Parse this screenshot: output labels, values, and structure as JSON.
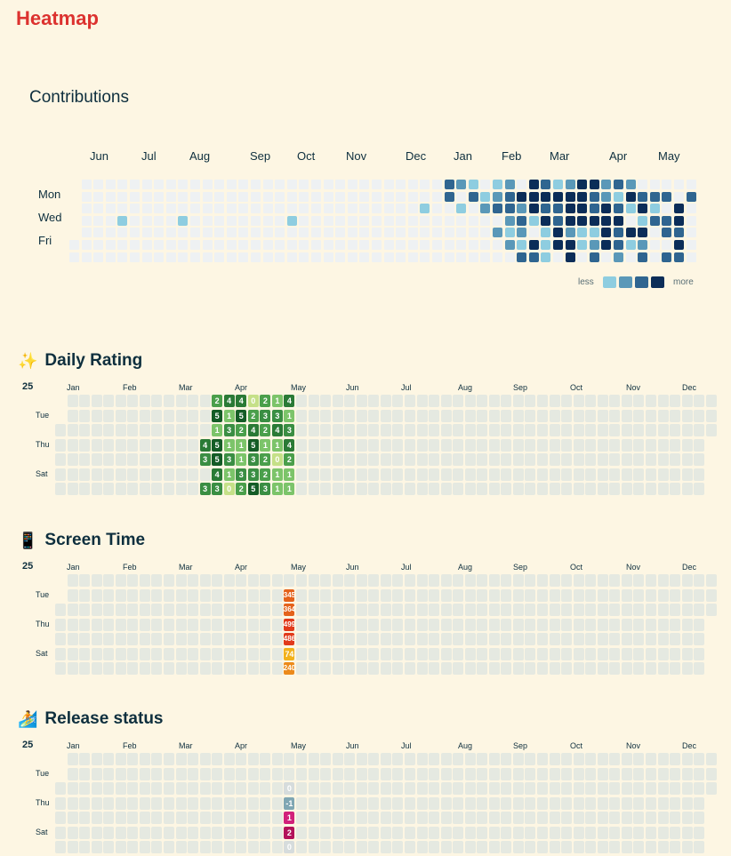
{
  "app_title": "Heatmap",
  "contributions": {
    "title": "Contributions",
    "months": [
      "Jun",
      "Jul",
      "Aug",
      "Sep",
      "Oct",
      "Nov",
      "Dec",
      "Jan",
      "Feb",
      "Mar",
      "Apr",
      "May"
    ],
    "day_labels": [
      "Mon",
      "Wed",
      "Fri"
    ],
    "legend_less": "less",
    "legend_more": "more",
    "colors": {
      "empty": "#eef1f3",
      "level1": "#8ecde0",
      "level2": "#5a98b8",
      "level3": "#2f6590",
      "level4": "#0b2d58"
    },
    "active_cells": [
      [
        42,
        1,
        3
      ],
      [
        43,
        1,
        2
      ],
      [
        44,
        1,
        1
      ],
      [
        46,
        1,
        1
      ],
      [
        47,
        1,
        2
      ],
      [
        49,
        1,
        4
      ],
      [
        50,
        1,
        3
      ],
      [
        51,
        1,
        1
      ],
      [
        52,
        1,
        2
      ],
      [
        53,
        1,
        4
      ],
      [
        54,
        1,
        4
      ],
      [
        55,
        1,
        2
      ],
      [
        56,
        1,
        3
      ],
      [
        57,
        1,
        2
      ],
      [
        44,
        2,
        3
      ],
      [
        45,
        2,
        1
      ],
      [
        46,
        2,
        2
      ],
      [
        47,
        2,
        3
      ],
      [
        48,
        2,
        4
      ],
      [
        49,
        2,
        4
      ],
      [
        50,
        2,
        4
      ],
      [
        51,
        2,
        4
      ],
      [
        52,
        2,
        4
      ],
      [
        53,
        2,
        4
      ],
      [
        54,
        2,
        3
      ],
      [
        55,
        2,
        2
      ],
      [
        56,
        2,
        1
      ],
      [
        57,
        2,
        4
      ],
      [
        58,
        2,
        3
      ],
      [
        59,
        2,
        3
      ],
      [
        60,
        2,
        3
      ],
      [
        62,
        2,
        3
      ],
      [
        43,
        3,
        1
      ],
      [
        45,
        3,
        2
      ],
      [
        46,
        3,
        3
      ],
      [
        47,
        3,
        3
      ],
      [
        48,
        3,
        2
      ],
      [
        49,
        3,
        4
      ],
      [
        50,
        3,
        3
      ],
      [
        51,
        3,
        3
      ],
      [
        52,
        3,
        4
      ],
      [
        53,
        3,
        4
      ],
      [
        54,
        3,
        3
      ],
      [
        55,
        3,
        4
      ],
      [
        56,
        3,
        3
      ],
      [
        57,
        3,
        1
      ],
      [
        58,
        3,
        4
      ],
      [
        59,
        3,
        1
      ],
      [
        61,
        3,
        4
      ],
      [
        47,
        4,
        2
      ],
      [
        48,
        4,
        3
      ],
      [
        49,
        4,
        1
      ],
      [
        50,
        4,
        4
      ],
      [
        51,
        4,
        3
      ],
      [
        52,
        4,
        4
      ],
      [
        53,
        4,
        4
      ],
      [
        54,
        4,
        4
      ],
      [
        55,
        4,
        4
      ],
      [
        56,
        4,
        4
      ],
      [
        58,
        4,
        1
      ],
      [
        59,
        4,
        3
      ],
      [
        60,
        4,
        3
      ],
      [
        61,
        4,
        4
      ],
      [
        46,
        5,
        2
      ],
      [
        47,
        5,
        1
      ],
      [
        48,
        5,
        2
      ],
      [
        50,
        5,
        1
      ],
      [
        51,
        5,
        4
      ],
      [
        52,
        5,
        2
      ],
      [
        53,
        5,
        1
      ],
      [
        54,
        5,
        1
      ],
      [
        55,
        5,
        4
      ],
      [
        56,
        5,
        3
      ],
      [
        57,
        5,
        4
      ],
      [
        58,
        5,
        4
      ],
      [
        60,
        5,
        3
      ],
      [
        61,
        5,
        3
      ],
      [
        47,
        6,
        2
      ],
      [
        48,
        6,
        1
      ],
      [
        49,
        6,
        4
      ],
      [
        50,
        6,
        1
      ],
      [
        51,
        6,
        4
      ],
      [
        52,
        6,
        4
      ],
      [
        53,
        6,
        1
      ],
      [
        54,
        6,
        2
      ],
      [
        55,
        6,
        4
      ],
      [
        56,
        6,
        3
      ],
      [
        57,
        6,
        1
      ],
      [
        58,
        6,
        2
      ],
      [
        61,
        6,
        4
      ],
      [
        48,
        7,
        3
      ],
      [
        49,
        7,
        3
      ],
      [
        50,
        7,
        1
      ],
      [
        52,
        7,
        4
      ],
      [
        54,
        7,
        3
      ],
      [
        56,
        7,
        2
      ],
      [
        58,
        7,
        3
      ],
      [
        60,
        7,
        3
      ],
      [
        61,
        7,
        3
      ],
      [
        46,
        8,
        4
      ],
      [
        47,
        8,
        1
      ],
      [
        54,
        8,
        3
      ],
      [
        56,
        8,
        3
      ],
      [
        15,
        4,
        1
      ],
      [
        20,
        4,
        1
      ],
      [
        29,
        4,
        1
      ],
      [
        40,
        3,
        1
      ],
      [
        42,
        2,
        3
      ]
    ]
  },
  "daily_rating": {
    "title": "Daily Rating",
    "emoji": "✨",
    "year": "25",
    "months": [
      "Jan",
      "Feb",
      "Mar",
      "Apr",
      "May",
      "Jun",
      "Jul",
      "Aug",
      "Sep",
      "Oct",
      "Nov",
      "Dec"
    ],
    "day_labels": [
      "Tue",
      "Thu",
      "Sat"
    ],
    "colors": {
      "0": "#c5e088",
      "1": "#7cc46a",
      "2": "#4a9f4b",
      "3": "#3a8e43",
      "4": "#2a7a36",
      "5": "#145c26"
    },
    "entries": [
      [
        13,
        0,
        "2"
      ],
      [
        14,
        0,
        "4"
      ],
      [
        15,
        0,
        "4"
      ],
      [
        16,
        0,
        "0"
      ],
      [
        17,
        0,
        "2"
      ],
      [
        18,
        0,
        "1"
      ],
      [
        19,
        0,
        "4"
      ],
      [
        13,
        1,
        "5"
      ],
      [
        14,
        1,
        "1"
      ],
      [
        15,
        1,
        "5"
      ],
      [
        16,
        1,
        "2"
      ],
      [
        17,
        1,
        "3"
      ],
      [
        18,
        1,
        "3"
      ],
      [
        19,
        1,
        "1"
      ],
      [
        13,
        2,
        "1"
      ],
      [
        14,
        2,
        "3"
      ],
      [
        15,
        2,
        "2"
      ],
      [
        16,
        2,
        "4"
      ],
      [
        17,
        2,
        "2"
      ],
      [
        18,
        2,
        "4"
      ],
      [
        19,
        2,
        "3"
      ],
      [
        12,
        3,
        "4"
      ],
      [
        13,
        3,
        "5"
      ],
      [
        14,
        3,
        "1"
      ],
      [
        15,
        3,
        "1"
      ],
      [
        16,
        3,
        "5"
      ],
      [
        17,
        3,
        "1"
      ],
      [
        18,
        3,
        "1"
      ],
      [
        19,
        3,
        "4"
      ],
      [
        12,
        4,
        "3"
      ],
      [
        13,
        4,
        "5"
      ],
      [
        14,
        4,
        "3"
      ],
      [
        15,
        4,
        "1"
      ],
      [
        16,
        4,
        "3"
      ],
      [
        17,
        4,
        "2"
      ],
      [
        18,
        4,
        "0"
      ],
      [
        19,
        4,
        "2"
      ],
      [
        13,
        5,
        "4"
      ],
      [
        14,
        5,
        "1"
      ],
      [
        15,
        5,
        "3"
      ],
      [
        16,
        5,
        "3"
      ],
      [
        17,
        5,
        "2"
      ],
      [
        18,
        5,
        "1"
      ],
      [
        19,
        5,
        "1"
      ],
      [
        12,
        6,
        "3"
      ],
      [
        13,
        6,
        "3"
      ],
      [
        14,
        6,
        "0"
      ],
      [
        15,
        6,
        "2"
      ],
      [
        16,
        6,
        "5"
      ],
      [
        17,
        6,
        "3"
      ],
      [
        18,
        6,
        "1"
      ],
      [
        19,
        6,
        "1"
      ]
    ]
  },
  "screen_time": {
    "title": "Screen Time",
    "emoji": "📱",
    "year": "25",
    "months": [
      "Jan",
      "Feb",
      "Mar",
      "Apr",
      "May",
      "Jun",
      "Jul",
      "Aug",
      "Sep",
      "Oct",
      "Nov",
      "Dec"
    ],
    "day_labels": [
      "Tue",
      "Thu",
      "Sat"
    ],
    "entries": [
      [
        19,
        1,
        "345",
        "#e4621b"
      ],
      [
        19,
        2,
        "364",
        "#e4621b"
      ],
      [
        19,
        3,
        "499",
        "#e13a1b"
      ],
      [
        19,
        4,
        "486",
        "#e13a1b"
      ],
      [
        19,
        5,
        "74",
        "#f2b11b"
      ],
      [
        19,
        6,
        "240",
        "#ec8a1b"
      ]
    ]
  },
  "release_status": {
    "title": "Release status",
    "emoji": "🏄",
    "year": "25",
    "months": [
      "Jan",
      "Feb",
      "Mar",
      "Apr",
      "May",
      "Jun",
      "Jul",
      "Aug",
      "Sep",
      "Oct",
      "Nov",
      "Dec"
    ],
    "day_labels": [
      "Tue",
      "Thu",
      "Sat"
    ],
    "entries": [
      [
        19,
        2,
        "0",
        "#d6dcdc"
      ],
      [
        19,
        3,
        "-1",
        "#7fa6b3"
      ],
      [
        19,
        4,
        "1",
        "#d1207a"
      ],
      [
        19,
        5,
        "2",
        "#b3125a"
      ],
      [
        19,
        6,
        "0",
        "#d6dcdc"
      ]
    ]
  }
}
